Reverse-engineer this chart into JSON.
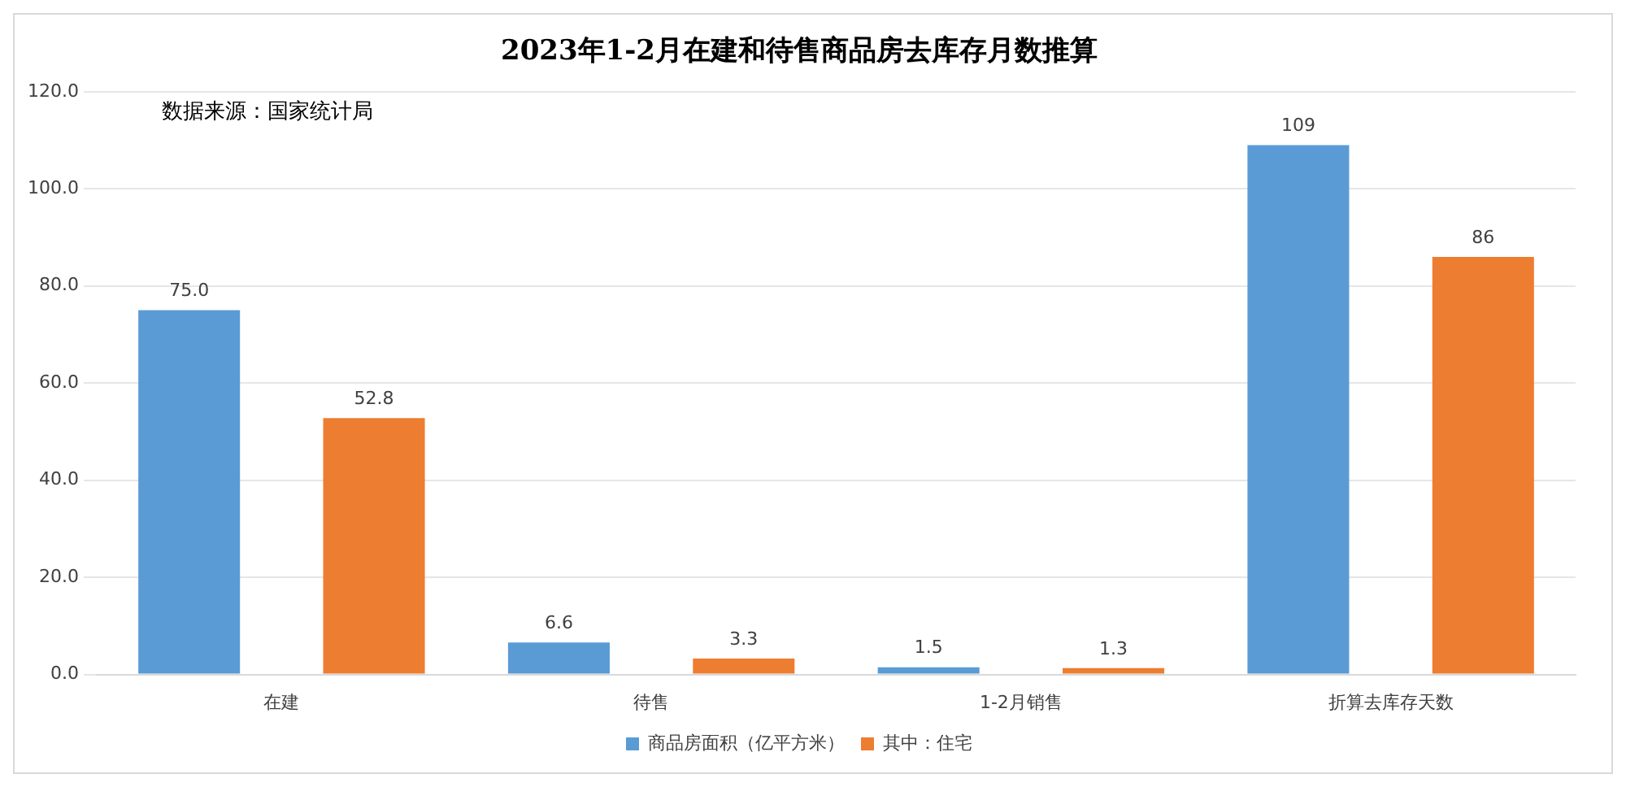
{
  "chart_data": {
    "type": "bar",
    "title": "2023年1-2月在建和待售商品房去库存月数推算",
    "categories": [
      "在建",
      "待售",
      "1-2月销售",
      "折算去库存天数"
    ],
    "series": [
      {
        "name": "商品房面积（亿平方米）",
        "color": "#5b9bd5",
        "values": [
          75,
          6.6,
          1.5,
          109
        ],
        "value_labels": [
          "75.0",
          "6.6",
          "1.5",
          "109"
        ]
      },
      {
        "name": "其中：住宅",
        "color": "#ed7d31",
        "values": [
          52.8,
          3.3,
          1.3,
          86
        ],
        "value_labels": [
          "52.8",
          "3.3",
          "1.3",
          "86"
        ]
      }
    ],
    "ylim": [
      0,
      120
    ],
    "yticks": [
      {
        "value": 0,
        "label": "0.0"
      },
      {
        "value": 20,
        "label": "20.0"
      },
      {
        "value": 40,
        "label": "40.0"
      },
      {
        "value": 60,
        "label": "60.0"
      },
      {
        "value": 80,
        "label": "80.0"
      },
      {
        "value": 100,
        "label": "100.0"
      },
      {
        "value": 120,
        "label": "120.0"
      }
    ],
    "grid": "y",
    "legend": "bottom",
    "annotations": [
      "数据来源：国家统计局"
    ]
  }
}
